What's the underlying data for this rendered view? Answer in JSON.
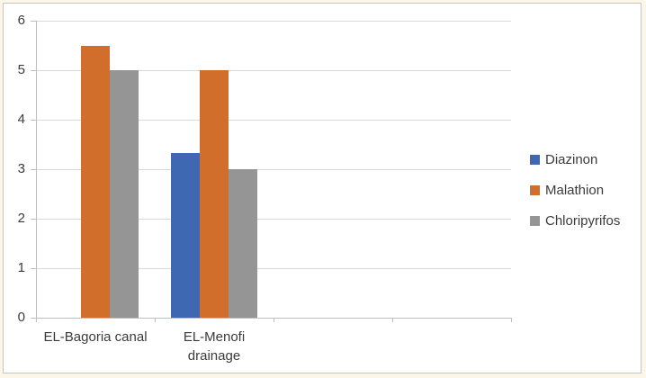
{
  "chart_data": {
    "type": "bar",
    "title": "",
    "xlabel": "",
    "ylabel": "",
    "categories": [
      "EL-Bagoria canal",
      "EL-Menofi drainage"
    ],
    "category_lines": [
      [
        "EL-Bagoria canal"
      ],
      [
        "EL-Menofi",
        "drainage"
      ]
    ],
    "series": [
      {
        "name": "Diazinon",
        "color": "#3E68B1",
        "values": [
          0,
          3.33
        ]
      },
      {
        "name": "Malathion",
        "color": "#D26E2B",
        "values": [
          5.5,
          5.0
        ]
      },
      {
        "name": "Chloripyrifos",
        "color": "#959595",
        "values": [
          5.0,
          3.0
        ]
      }
    ],
    "ylim": [
      0,
      6
    ],
    "y_ticks": [
      0,
      1,
      2,
      3,
      4,
      5,
      6
    ],
    "x_axis_slots": 4,
    "grid": true,
    "legend_position": "right",
    "colors": {
      "gridline": "#D9D9D9",
      "axis_line": "#BFBFBF",
      "tick_text": "#3B3B3B",
      "frame_border": "#C9C6BF",
      "page_background": "#FBF6E7",
      "plot_background": "#FFFFFF"
    }
  }
}
